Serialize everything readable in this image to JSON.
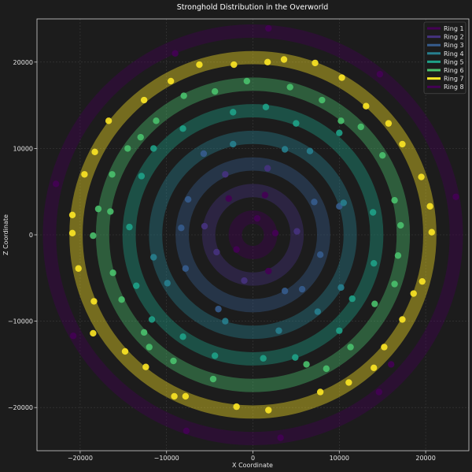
{
  "chart_data": {
    "type": "scatter",
    "title": "Stronghold Distribution in the Overworld",
    "xlabel": "X Coordinate",
    "ylabel": "Z Coordinate",
    "xlim": [
      -25000,
      25000
    ],
    "ylim": [
      -25000,
      25000
    ],
    "x_ticks": [
      -20000,
      -10000,
      0,
      10000,
      20000
    ],
    "y_ticks": [
      -20000,
      -10000,
      0,
      10000,
      20000
    ],
    "grid": true,
    "legend_position": "top-right",
    "background": "#1c1c1c",
    "series": [
      {
        "name": "Ring 1",
        "color": "#440154",
        "band": [
          1280,
          2816
        ],
        "points": [
          [
            500,
            1900
          ],
          [
            2600,
            200
          ],
          [
            -1900,
            -1700
          ],
          [
            1800,
            -4200
          ],
          [
            -2800,
            4200
          ],
          [
            1400,
            4600
          ]
        ]
      },
      {
        "name": "Ring 2",
        "color": "#46327e",
        "band": [
          4352,
          5888
        ],
        "points": [
          [
            1700,
            7700
          ],
          [
            -3200,
            7000
          ],
          [
            -5600,
            1000
          ],
          [
            -4200,
            -2000
          ],
          [
            -1000,
            -5300
          ],
          [
            5100,
            400
          ]
        ]
      },
      {
        "name": "Ring 3",
        "color": "#365c8d",
        "band": [
          7424,
          8960
        ],
        "points": [
          [
            7100,
            3800
          ],
          [
            7800,
            -2300
          ],
          [
            3700,
            -6500
          ],
          [
            -4000,
            -8600
          ],
          [
            -8300,
            800
          ],
          [
            -7800,
            -3900
          ],
          [
            -7500,
            4100
          ],
          [
            -5700,
            9400
          ],
          [
            5700,
            -6300
          ],
          [
            10000,
            3300
          ]
        ]
      },
      {
        "name": "Ring 4",
        "color": "#277f8e",
        "band": [
          10496,
          12032
        ],
        "points": [
          [
            -2300,
            10500
          ],
          [
            3700,
            9900
          ],
          [
            6600,
            9700
          ],
          [
            10500,
            3700
          ],
          [
            10200,
            -6100
          ],
          [
            7500,
            -8900
          ],
          [
            3000,
            -11100
          ],
          [
            -3200,
            -10000
          ],
          [
            -9900,
            -5600
          ],
          [
            -11500,
            -2600
          ]
        ]
      },
      {
        "name": "Ring 5",
        "color": "#1fa187",
        "band": [
          13568,
          15104
        ],
        "points": [
          [
            1500,
            14800
          ],
          [
            -2300,
            14200
          ],
          [
            -8100,
            12300
          ],
          [
            -11500,
            10000
          ],
          [
            -14300,
            900
          ],
          [
            -13500,
            -5900
          ],
          [
            -11700,
            -9800
          ],
          [
            -8100,
            -11800
          ],
          [
            -4400,
            -14000
          ],
          [
            1200,
            -14300
          ],
          [
            4900,
            -14200
          ],
          [
            10000,
            -11100
          ],
          [
            11500,
            -7400
          ],
          [
            14000,
            -3300
          ],
          [
            13900,
            2600
          ],
          [
            10000,
            11800
          ],
          [
            5000,
            12900
          ],
          [
            -12900,
            6800
          ]
        ]
      },
      {
        "name": "Ring 6",
        "color": "#4ac16d",
        "band": [
          16640,
          18176
        ],
        "points": [
          [
            -4400,
            16600
          ],
          [
            -700,
            17800
          ],
          [
            4300,
            17100
          ],
          [
            8000,
            15600
          ],
          [
            10200,
            13200
          ],
          [
            12500,
            12500
          ],
          [
            15000,
            9200
          ],
          [
            16400,
            4000
          ],
          [
            17100,
            1100
          ],
          [
            16800,
            -2400
          ],
          [
            16400,
            -5700
          ],
          [
            14100,
            -8000
          ],
          [
            11300,
            -13000
          ],
          [
            8500,
            -15500
          ],
          [
            6200,
            -15000
          ],
          [
            -9200,
            -14600
          ],
          [
            -4600,
            -16700
          ],
          [
            -12600,
            -11300
          ],
          [
            -12000,
            -13000
          ],
          [
            -15200,
            -7500
          ],
          [
            -16200,
            -4400
          ],
          [
            -16500,
            2700
          ],
          [
            -18500,
            -100
          ],
          [
            -17900,
            3000
          ],
          [
            -16300,
            7000
          ],
          [
            -14500,
            10000
          ],
          [
            -13000,
            11300
          ],
          [
            -11200,
            13200
          ],
          [
            -8000,
            16100
          ]
        ]
      },
      {
        "name": "Ring 7",
        "color": "#fde725",
        "band": [
          19712,
          21248
        ],
        "points": [
          [
            -9500,
            17800
          ],
          [
            -6200,
            19700
          ],
          [
            -2200,
            19700
          ],
          [
            1700,
            20000
          ],
          [
            3600,
            20300
          ],
          [
            7200,
            19900
          ],
          [
            10300,
            18200
          ],
          [
            13100,
            14900
          ],
          [
            15700,
            12900
          ],
          [
            17300,
            10500
          ],
          [
            19500,
            6700
          ],
          [
            20500,
            3300
          ],
          [
            20700,
            300
          ],
          [
            19600,
            -5400
          ],
          [
            18600,
            -6800
          ],
          [
            17300,
            -9800
          ],
          [
            15200,
            -13000
          ],
          [
            14000,
            -15400
          ],
          [
            11100,
            -17100
          ],
          [
            7800,
            -18200
          ],
          [
            1800,
            -20300
          ],
          [
            -1900,
            -19900
          ],
          [
            -9100,
            -18700
          ],
          [
            -7800,
            -18700
          ],
          [
            -12400,
            -15300
          ],
          [
            -14800,
            -13500
          ],
          [
            -18500,
            -11400
          ],
          [
            -18400,
            -7700
          ],
          [
            -20200,
            -3900
          ],
          [
            -20900,
            200
          ],
          [
            -20900,
            2300
          ],
          [
            -19500,
            7000
          ],
          [
            -18300,
            9600
          ],
          [
            -16700,
            13200
          ],
          [
            -12600,
            15600
          ]
        ]
      },
      {
        "name": "Ring 8",
        "color": "#440154",
        "band": [
          22784,
          24320
        ],
        "points": [
          [
            1800,
            23900
          ],
          [
            -9000,
            21000
          ],
          [
            14700,
            18600
          ],
          [
            23500,
            4400
          ],
          [
            -22800,
            5900
          ],
          [
            -20800,
            -11700
          ],
          [
            14600,
            -18200
          ],
          [
            -7700,
            -22700
          ],
          [
            3200,
            -23500
          ],
          [
            16000,
            -15000
          ]
        ]
      }
    ]
  }
}
